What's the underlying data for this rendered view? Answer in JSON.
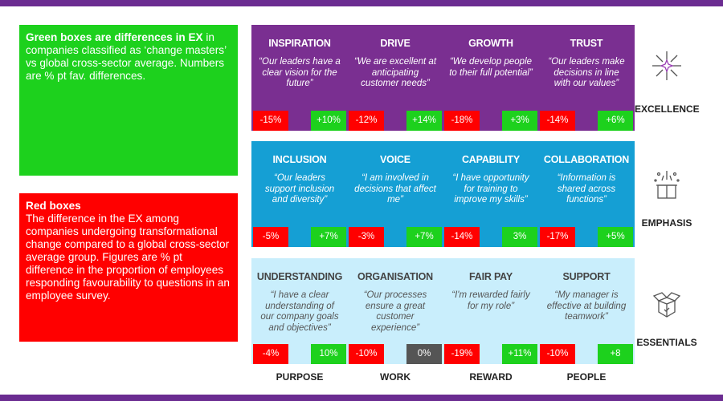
{
  "legend_green": {
    "bold": "Green boxes are differences in EX",
    "text": " in companies classified as ‘change masters’ vs  global cross-sector average. Numbers are % pt fav. differences."
  },
  "legend_red": {
    "bold": "Red boxes",
    "text": "The difference in the EX among companies undergoing transformational change compared to a global cross-sector average group. Figures are % pt difference in the proportion of employees responding favourability  to questions in an employee survey."
  },
  "rows": [
    {
      "label": "EXCELLENCE",
      "icon": "sparkle-icon",
      "cards": [
        {
          "title": "INSPIRATION",
          "quote": "“Our leaders have a clear vision for the future”",
          "red": "-15%",
          "green": "+10%"
        },
        {
          "title": "DRIVE",
          "quote": "“We are excellent at anticipating customer needs”",
          "red": "-12%",
          "green": "+14%"
        },
        {
          "title": "GROWTH",
          "quote": "“We develop people to their full potential”",
          "red": "-18%",
          "green": "+3%"
        },
        {
          "title": "TRUST",
          "quote": "“Our leaders make decisions in line with our values”",
          "red": "-14%",
          "green": "+6%"
        }
      ]
    },
    {
      "label": "EMPHASIS",
      "icon": "gift-box-icon",
      "cards": [
        {
          "title": "INCLUSION",
          "quote": "“Our leaders support inclusion and diversity”",
          "red": "-5%",
          "green": "+7%"
        },
        {
          "title": "VOICE",
          "quote": "“I am involved in decisions that affect me”",
          "red": "-3%",
          "green": "+7%"
        },
        {
          "title": "CAPABILITY",
          "quote": "“I have opportunity for training to improve my skills”",
          "red": "-14%",
          "green": "3%"
        },
        {
          "title": "COLLABORATION",
          "quote": "“Information is shared across functions”",
          "red": "-17%",
          "green": "+5%"
        }
      ]
    },
    {
      "label": "ESSENTIALS",
      "icon": "open-box-icon",
      "cards": [
        {
          "title": "UNDERSTANDING",
          "quote": "“I have a clear understanding of our company goals and objectives”",
          "red": "-4%",
          "green": "10%"
        },
        {
          "title": "ORGANISATION",
          "quote": "“Our processes ensure a great customer experience”",
          "red": "-10%",
          "green": "0%"
        },
        {
          "title": "FAIR PAY",
          "quote": "“I'm rewarded fairly for my role”",
          "red": "-19%",
          "green": "+11%"
        },
        {
          "title": "SUPPORT",
          "quote": "“My manager is effective at building teamwork”",
          "red": "-10%",
          "green": "+8"
        }
      ]
    }
  ],
  "columns": [
    "PURPOSE",
    "WORK",
    "REWARD",
    "PEOPLE"
  ]
}
